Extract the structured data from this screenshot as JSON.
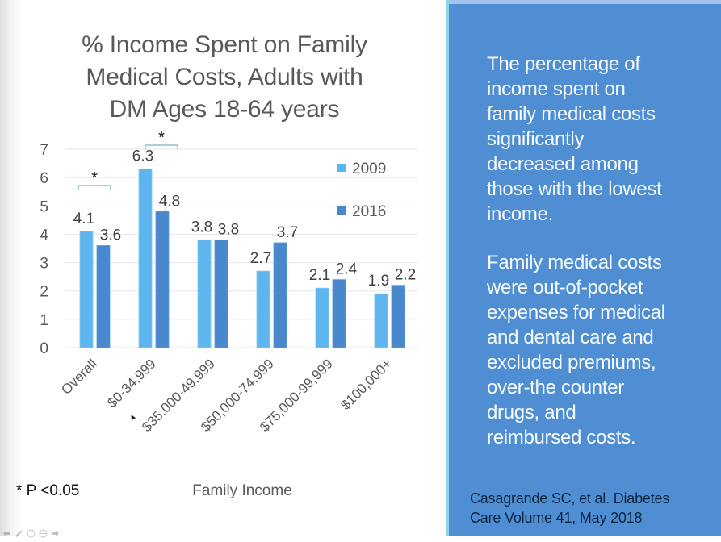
{
  "chart_data": {
    "type": "bar",
    "title_lines": [
      "% Income Spent on Family",
      "Medical Costs, Adults with",
      "DM Ages 18-64 years"
    ],
    "xlabel": "Family Income",
    "ylabel": "",
    "categories": [
      "Overall",
      "$0-34,999",
      "$35,000-49,999",
      "$50,000-74,999",
      "$75,000-99,999",
      "$100,000+"
    ],
    "series": [
      {
        "name": "2009",
        "values": [
          4.1,
          6.3,
          3.8,
          2.7,
          2.1,
          1.9
        ],
        "color": "#5fb6ef"
      },
      {
        "name": "2016",
        "values": [
          3.6,
          4.8,
          3.8,
          3.7,
          2.4,
          2.2
        ],
        "color": "#4a88cd"
      }
    ],
    "ylim": [
      0,
      7
    ],
    "yticks": [
      0,
      1,
      2,
      3,
      4,
      5,
      6,
      7
    ],
    "grid": true,
    "legend": "right",
    "data_labels": true,
    "annotations": [
      {
        "category": "Overall",
        "text": "*",
        "meaning": "significant difference"
      },
      {
        "category": "$0-34,999",
        "text": "*",
        "meaning": "significant difference"
      }
    ],
    "footnote": "* P <0.05"
  },
  "colors": {
    "panel_background": "#4f8ed3",
    "panel_text": "#f7fafd",
    "citation_text": "#10263f",
    "bracket": "#8cc3c9",
    "title_text": "#595959"
  },
  "panel": {
    "paragraph1_lines": [
      "The percentage of",
      "income spent on",
      "family medical costs",
      "significantly",
      "decreased among",
      "those with the lowest",
      "income."
    ],
    "paragraph2_lines": [
      "Family medical costs",
      "were out-of-pocket",
      "expenses for medical",
      "and dental care and",
      "excluded premiums,",
      "over-the counter",
      "drugs, and",
      "reimbursed costs."
    ],
    "citation_lines": [
      "Casagrande SC, et al. Diabetes",
      "Care Volume 41, May 2018"
    ]
  },
  "toolbar": {
    "icons": [
      "arrow-left-icon",
      "pen-icon",
      "zoom-icon",
      "menu-icon",
      "arrow-right-icon"
    ]
  }
}
